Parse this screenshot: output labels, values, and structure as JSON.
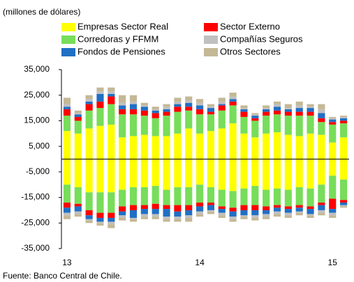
{
  "chart_data": {
    "type": "bar",
    "stacked": true,
    "subtitle": "(millones de dólares)",
    "source": "Fuente: Banco Central de Chile.",
    "categories": [
      "13",
      null,
      null,
      null,
      null,
      null,
      null,
      null,
      null,
      null,
      null,
      null,
      "14",
      null,
      null,
      null,
      null,
      null,
      null,
      null,
      null,
      null,
      null,
      null,
      "15",
      null
    ],
    "ylim": [
      -35000,
      35000
    ],
    "yticks": [
      {
        "value": -35000,
        "label": "-35,000"
      },
      {
        "value": -25000,
        "label": "-25,000"
      },
      {
        "value": -15000,
        "label": "-15,000"
      },
      {
        "value": -5000,
        "label": "-5,000"
      },
      {
        "value": 5000,
        "label": "5,000"
      },
      {
        "value": 15000,
        "label": "15,000"
      },
      {
        "value": 25000,
        "label": "25,000"
      },
      {
        "value": 35000,
        "label": "35,000"
      }
    ],
    "series": [
      {
        "name": "Empresas Sector Real",
        "color": "#ffff00",
        "values": [
          11000,
          10000,
          12000,
          13000,
          13500,
          8500,
          9000,
          9500,
          9000,
          9000,
          10000,
          12000,
          10000,
          11000,
          12000,
          14000,
          10000,
          8500,
          10000,
          10500,
          9500,
          9000,
          10000,
          9500,
          6500,
          8500
        ],
        "negative_values": [
          -10000,
          -11000,
          -13000,
          -13000,
          -13000,
          -12000,
          -11000,
          -11000,
          -10500,
          -12000,
          -11000,
          -11000,
          -10000,
          -11000,
          -12000,
          -12500,
          -11500,
          -10500,
          -12000,
          -11500,
          -12000,
          -11000,
          -11500,
          -10000,
          -6500,
          -8000
        ]
      },
      {
        "name": "Corredoras y FFMM",
        "color": "#77dd5a",
        "values": [
          6000,
          5000,
          7000,
          7000,
          8000,
          9000,
          8500,
          7500,
          7000,
          8000,
          8500,
          7000,
          7500,
          6500,
          7000,
          7000,
          6500,
          6500,
          7000,
          7000,
          7500,
          8000,
          7000,
          5000,
          7000,
          5500
        ],
        "negative_values": [
          -7000,
          -6500,
          -7000,
          -8000,
          -8000,
          -6500,
          -7000,
          -7000,
          -7000,
          -6000,
          -7000,
          -7000,
          -7000,
          -6000,
          -6500,
          -6500,
          -6500,
          -7500,
          -6500,
          -6500,
          -6500,
          -7000,
          -7000,
          -7000,
          -9000,
          -8000
        ]
      },
      {
        "name": "Sector Externo",
        "color": "#ff0000",
        "values": [
          2500,
          1500,
          2500,
          2500,
          3000,
          2000,
          2000,
          2000,
          2000,
          1500,
          2000,
          1500,
          2000,
          1000,
          2000,
          1500,
          2000,
          1000,
          1500,
          1500,
          1500,
          1500,
          1500,
          1500,
          1000,
          1000
        ],
        "negative_values": [
          -2000,
          -1000,
          -2000,
          -2000,
          -2000,
          -2000,
          -2000,
          -1500,
          -2000,
          -1500,
          -2500,
          -2000,
          -1500,
          -1000,
          -1000,
          -1500,
          -2000,
          -2000,
          -1500,
          -1000,
          -1000,
          -1000,
          -1000,
          -1000,
          -4000,
          -1000
        ]
      },
      {
        "name": "Fondos de Pensiones",
        "color": "#1f6fc5",
        "values": [
          1000,
          1000,
          1000,
          3000,
          1000,
          1500,
          2000,
          1500,
          1000,
          1000,
          1000,
          1500,
          1500,
          1500,
          500,
          1000,
          1000,
          1000,
          1000,
          1500,
          1000,
          1500,
          1500,
          2000,
          1000,
          1000
        ],
        "negative_values": [
          -2000,
          -2000,
          -1500,
          -1500,
          -1500,
          -1500,
          -3000,
          -2000,
          -2000,
          -3000,
          -2000,
          -2000,
          -2000,
          -2000,
          -1500,
          -2000,
          -2000,
          -2000,
          -1500,
          -1500,
          -1500,
          -1500,
          -2000,
          -2000,
          -1500,
          -1000
        ]
      },
      {
        "name": "Compañías Seguros",
        "color": "#c0c0c0",
        "values": [
          1000,
          500,
          1000,
          1000,
          1000,
          1000,
          1000,
          500,
          500,
          1000,
          1000,
          1000,
          1000,
          500,
          1000,
          1000,
          500,
          500,
          500,
          1000,
          500,
          1000,
          500,
          1500,
          500,
          500
        ],
        "negative_values": [
          -1000,
          -1000,
          -500,
          -500,
          -1000,
          -1000,
          -500,
          -1000,
          -1000,
          -1000,
          -1000,
          -1000,
          -1000,
          -500,
          -1000,
          -1000,
          -500,
          -1000,
          -1000,
          -1000,
          -1000,
          -500,
          -500,
          -1000,
          -1000,
          -500
        ]
      },
      {
        "name": "Otros Sectores",
        "color": "#c4b896",
        "values": [
          2500,
          1000,
          1500,
          1500,
          1500,
          3000,
          2500,
          1000,
          1000,
          1000,
          1500,
          1500,
          1500,
          1000,
          1500,
          1500,
          1000,
          500,
          1000,
          1000,
          1500,
          1500,
          1000,
          2000,
          500,
          500
        ],
        "negative_values": [
          -1500,
          -1000,
          -1000,
          -1000,
          -1500,
          -1000,
          -1000,
          -1000,
          -1000,
          -1000,
          -1000,
          -1500,
          -1000,
          -1000,
          -1000,
          -1000,
          -1000,
          -1000,
          -1000,
          -1000,
          -1000,
          -1000,
          -1000,
          -1000,
          -1000,
          -500
        ]
      }
    ]
  }
}
